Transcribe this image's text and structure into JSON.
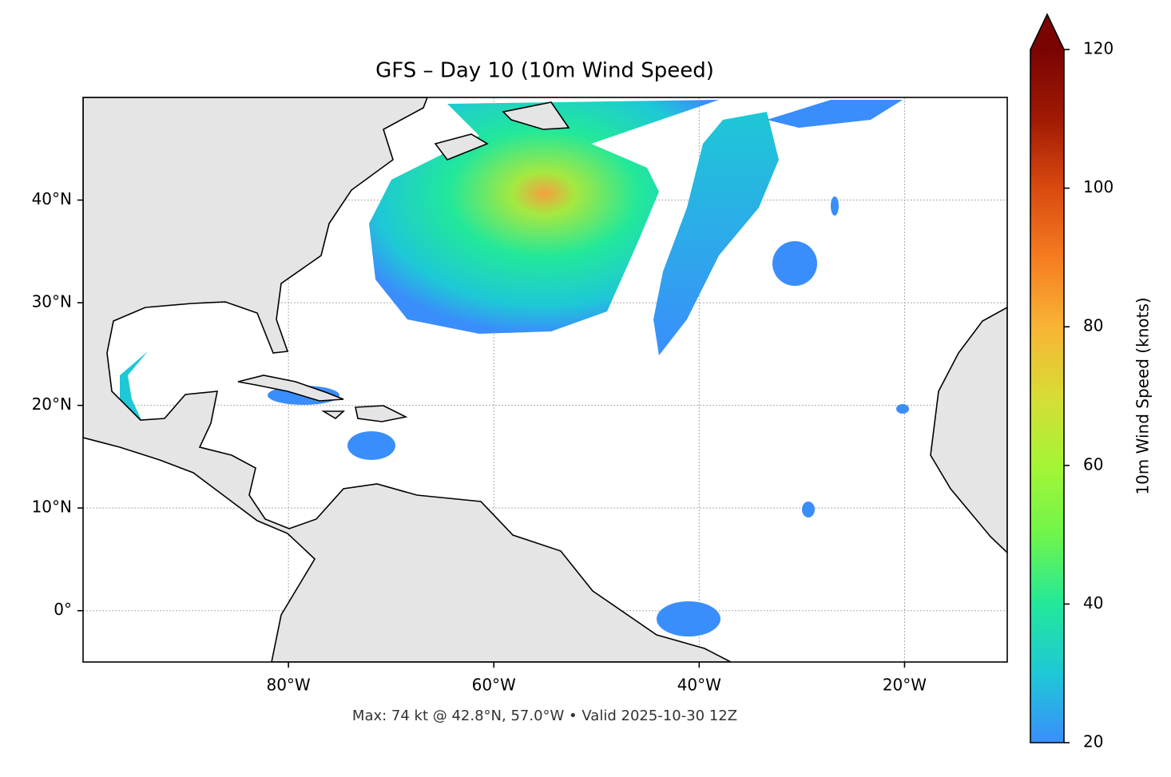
{
  "chart_data": {
    "type": "map",
    "title": "GFS – Day 10 (10m Wind Speed)",
    "footnote": "Max: 74 kt @ 42.8°N, 57.0°W • Valid 2025-10-30 12Z",
    "xlim": [
      -100,
      -10
    ],
    "ylim": [
      -5,
      50
    ],
    "xticks": [
      {
        "value": -80,
        "label": "80°W"
      },
      {
        "value": -60,
        "label": "60°W"
      },
      {
        "value": -40,
        "label": "40°W"
      },
      {
        "value": -20,
        "label": "20°W"
      }
    ],
    "yticks": [
      {
        "value": 0,
        "label": "0°"
      },
      {
        "value": 10,
        "label": "10°N"
      },
      {
        "value": 20,
        "label": "20°N"
      },
      {
        "value": 30,
        "label": "30°N"
      },
      {
        "value": 40,
        "label": "40°N"
      }
    ],
    "grid": true,
    "colorbar": {
      "label": "10m Wind Speed (knots)",
      "lim": [
        20,
        120
      ],
      "ticks": [
        20,
        40,
        60,
        80,
        100,
        120
      ],
      "extend": "max",
      "colors": [
        "#3a8efb",
        "#1ec8d6",
        "#22e89a",
        "#6ff54a",
        "#a5f535",
        "#d8dc35",
        "#f8b435",
        "#f57c20",
        "#d94a10",
        "#a01a04",
        "#7a0403"
      ]
    }
  }
}
